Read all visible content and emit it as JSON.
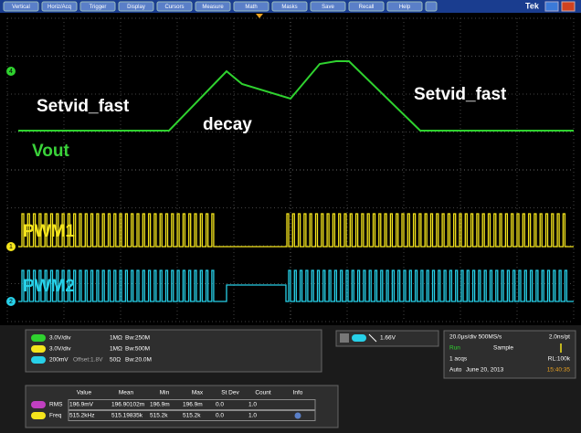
{
  "menu": [
    "Vertical",
    "Horiz/Acq",
    "Trigger",
    "Display",
    "Cursors",
    "Measure",
    "Math",
    "Masks",
    "Save",
    "Recall",
    "Help"
  ],
  "brand": "Tek",
  "annotations": {
    "setvid_left": "Setvid_fast",
    "decay": "decay",
    "setvid_right": "Setvid_fast",
    "vout": "Vout",
    "pwm1": "PWM1",
    "pwm2": "PWM2"
  },
  "channel_markers": [
    "4",
    "1",
    "2"
  ],
  "channels": [
    {
      "scale": "3.0V/div",
      "impedance": "1MΩ",
      "bandwidth": "Bw:250M"
    },
    {
      "scale": "3.0V/div",
      "impedance": "1MΩ",
      "bandwidth": "Bw:500M"
    },
    {
      "scale": "200mV",
      "offset": "Offset:1.8V",
      "impedance": "50Ω",
      "bandwidth": "Bw:20.0M"
    }
  ],
  "trigger": {
    "level": "1.66V"
  },
  "acquisition": {
    "timebase": "20.0µs/div 500MS/s",
    "resolution": "2.0ns/pt",
    "state": "Run",
    "mode": "Sample",
    "count": "1 acqs",
    "record_length": "RL:100k",
    "trigger_mode": "Auto",
    "date": "June 20, 2013",
    "time": "15:40:35"
  },
  "measurements": {
    "headers": [
      "Value",
      "Mean",
      "Min",
      "Max",
      "St Dev",
      "Count",
      "Info"
    ],
    "rows": [
      {
        "label": "RMS",
        "cells": [
          "196.9mV",
          "196.90102m",
          "196.9m",
          "196.9m",
          "0.0",
          "1.0"
        ]
      },
      {
        "label": "Freq",
        "cells": [
          "515.2kHz",
          "515.19835k",
          "515.2k",
          "515.2k",
          "0.0",
          "1.0"
        ]
      }
    ]
  }
}
